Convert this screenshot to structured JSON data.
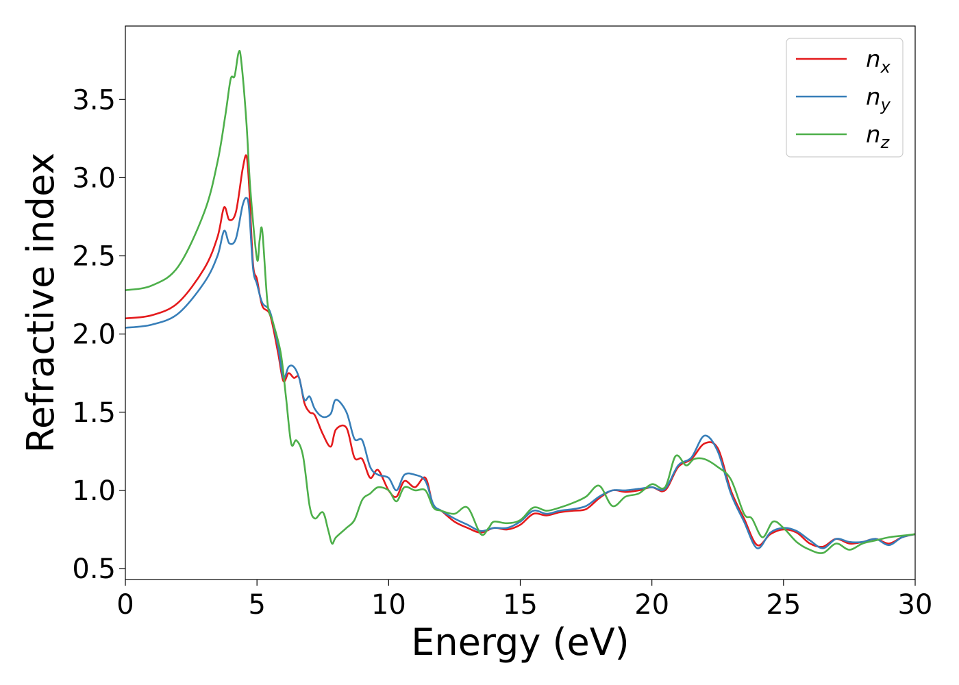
{
  "chart_data": {
    "type": "line",
    "title": "",
    "xlabel": "Energy (eV)",
    "ylabel": "Refractive index",
    "xlim": [
      0,
      30
    ],
    "ylim": [
      0.43,
      3.97
    ],
    "xticks": [
      0,
      5,
      10,
      15,
      20,
      25,
      30
    ],
    "yticks": [
      0.5,
      1.0,
      1.5,
      2.0,
      2.5,
      3.0,
      3.5
    ],
    "grid": false,
    "legend_position": "top-right",
    "series": [
      {
        "name": "n_x",
        "legend_base": "n",
        "legend_sub": "x",
        "color": "#e41a1c",
        "x": [
          0,
          1,
          2,
          3,
          3.5,
          3.75,
          3.95,
          4.2,
          4.45,
          4.6,
          4.7,
          4.85,
          5.0,
          5.2,
          5.5,
          5.8,
          6.0,
          6.2,
          6.4,
          6.6,
          6.8,
          7.0,
          7.2,
          7.5,
          7.8,
          8.0,
          8.4,
          8.7,
          9.0,
          9.3,
          9.6,
          10.0,
          10.3,
          10.6,
          11.0,
          11.4,
          11.7,
          12.0,
          12.5,
          13.0,
          13.5,
          14.0,
          14.5,
          15.0,
          15.5,
          16.0,
          16.5,
          17.0,
          17.5,
          18.0,
          18.5,
          19.0,
          19.5,
          20.0,
          20.5,
          21.0,
          21.5,
          22.0,
          22.5,
          23.0,
          23.5,
          24.0,
          24.5,
          25.0,
          25.5,
          26.0,
          26.5,
          27.0,
          27.5,
          28.0,
          28.5,
          29.0,
          29.5,
          30.0
        ],
        "y": [
          2.1,
          2.12,
          2.2,
          2.42,
          2.62,
          2.81,
          2.73,
          2.78,
          3.05,
          3.14,
          2.95,
          2.45,
          2.35,
          2.18,
          2.12,
          1.88,
          1.7,
          1.75,
          1.72,
          1.72,
          1.56,
          1.5,
          1.48,
          1.36,
          1.28,
          1.39,
          1.4,
          1.21,
          1.2,
          1.08,
          1.13,
          1.0,
          0.96,
          1.06,
          1.02,
          1.08,
          0.9,
          0.87,
          0.8,
          0.76,
          0.73,
          0.76,
          0.75,
          0.78,
          0.85,
          0.84,
          0.86,
          0.87,
          0.88,
          0.95,
          1.0,
          0.99,
          1.0,
          1.02,
          1.0,
          1.15,
          1.2,
          1.3,
          1.27,
          1.0,
          0.82,
          0.65,
          0.72,
          0.75,
          0.73,
          0.66,
          0.64,
          0.69,
          0.66,
          0.67,
          0.69,
          0.66,
          0.7,
          0.72
        ]
      },
      {
        "name": "n_y",
        "legend_base": "n",
        "legend_sub": "y",
        "color": "#377eb8",
        "x": [
          0,
          1,
          2,
          3,
          3.5,
          3.75,
          3.95,
          4.2,
          4.45,
          4.6,
          4.7,
          4.85,
          5.0,
          5.2,
          5.5,
          5.8,
          6.0,
          6.2,
          6.4,
          6.6,
          6.8,
          7.0,
          7.2,
          7.5,
          7.8,
          8.0,
          8.4,
          8.7,
          9.0,
          9.3,
          9.6,
          10.0,
          10.3,
          10.6,
          11.0,
          11.4,
          11.7,
          12.0,
          12.5,
          13.0,
          13.5,
          14.0,
          14.5,
          15.0,
          15.5,
          16.0,
          16.5,
          17.0,
          17.5,
          18.0,
          18.5,
          19.0,
          19.5,
          20.0,
          20.5,
          21.0,
          21.5,
          22.0,
          22.5,
          23.0,
          23.5,
          24.0,
          24.5,
          25.0,
          25.5,
          26.0,
          26.5,
          27.0,
          27.5,
          28.0,
          28.5,
          29.0,
          29.5,
          30.0
        ],
        "y": [
          2.04,
          2.06,
          2.13,
          2.33,
          2.5,
          2.66,
          2.58,
          2.61,
          2.82,
          2.87,
          2.8,
          2.42,
          2.32,
          2.2,
          2.14,
          1.92,
          1.72,
          1.79,
          1.79,
          1.72,
          1.58,
          1.6,
          1.52,
          1.47,
          1.49,
          1.58,
          1.5,
          1.33,
          1.32,
          1.15,
          1.1,
          1.08,
          1.0,
          1.1,
          1.1,
          1.06,
          0.91,
          0.87,
          0.82,
          0.78,
          0.74,
          0.76,
          0.76,
          0.8,
          0.87,
          0.85,
          0.87,
          0.88,
          0.9,
          0.96,
          1.0,
          1.0,
          1.01,
          1.02,
          1.01,
          1.16,
          1.21,
          1.35,
          1.25,
          0.98,
          0.8,
          0.63,
          0.73,
          0.76,
          0.74,
          0.68,
          0.63,
          0.69,
          0.67,
          0.67,
          0.69,
          0.65,
          0.7,
          0.72
        ]
      },
      {
        "name": "n_z",
        "legend_base": "n",
        "legend_sub": "z",
        "color": "#4daf4a",
        "x": [
          0,
          1,
          2,
          3,
          3.5,
          3.8,
          4.0,
          4.15,
          4.3,
          4.4,
          4.6,
          4.75,
          5.0,
          5.1,
          5.2,
          5.4,
          5.6,
          5.9,
          6.1,
          6.3,
          6.5,
          6.75,
          7.0,
          7.2,
          7.5,
          7.7,
          7.85,
          8.0,
          8.4,
          8.7,
          9.0,
          9.3,
          9.6,
          10.0,
          10.3,
          10.6,
          11.0,
          11.4,
          11.7,
          12.0,
          12.5,
          13.0,
          13.5,
          13.8,
          14.0,
          14.5,
          15.0,
          15.5,
          16.0,
          16.5,
          17.0,
          17.5,
          18.0,
          18.5,
          19.0,
          19.5,
          20.0,
          20.5,
          20.9,
          21.3,
          21.6,
          22.0,
          22.5,
          23.0,
          23.5,
          23.8,
          24.2,
          24.6,
          25.0,
          25.5,
          26.0,
          26.5,
          27.0,
          27.5,
          28.0,
          28.5,
          29.0,
          29.5,
          30.0
        ],
        "y": [
          2.28,
          2.31,
          2.43,
          2.78,
          3.1,
          3.4,
          3.63,
          3.65,
          3.8,
          3.75,
          3.35,
          2.92,
          2.48,
          2.6,
          2.66,
          2.2,
          2.08,
          1.88,
          1.6,
          1.3,
          1.32,
          1.22,
          0.9,
          0.82,
          0.86,
          0.75,
          0.66,
          0.7,
          0.76,
          0.81,
          0.94,
          0.98,
          1.02,
          1.0,
          0.93,
          1.02,
          1.0,
          1.0,
          0.89,
          0.87,
          0.85,
          0.89,
          0.72,
          0.76,
          0.8,
          0.79,
          0.81,
          0.89,
          0.87,
          0.89,
          0.92,
          0.96,
          1.03,
          0.9,
          0.96,
          0.98,
          1.04,
          1.02,
          1.22,
          1.16,
          1.2,
          1.2,
          1.15,
          1.07,
          0.85,
          0.82,
          0.7,
          0.8,
          0.76,
          0.67,
          0.62,
          0.6,
          0.66,
          0.62,
          0.66,
          0.68,
          0.7,
          0.71,
          0.72
        ]
      }
    ]
  }
}
